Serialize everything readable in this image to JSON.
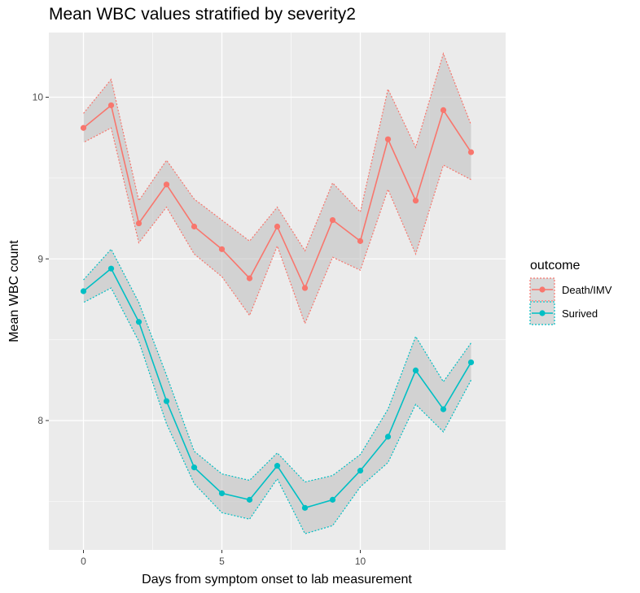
{
  "chart_data": {
    "type": "line",
    "title": "Mean WBC values stratified by severity2",
    "xlabel": "Days from symptom onset to lab measurement",
    "ylabel": "Mean WBC count",
    "xlim": [
      -1.25,
      15.25
    ],
    "ylim": [
      7.2,
      10.4
    ],
    "x_ticks": [
      0,
      5,
      10
    ],
    "y_ticks": [
      8,
      9,
      10
    ],
    "grid": true,
    "legend": {
      "title": "outcome",
      "position": "right"
    },
    "x": [
      0,
      1,
      2,
      3,
      4,
      5,
      6,
      7,
      8,
      9,
      10,
      11,
      12,
      13,
      14
    ],
    "series": [
      {
        "name": "Death/IMV",
        "color": "#F8766D",
        "values": [
          9.81,
          9.95,
          9.22,
          9.46,
          9.2,
          9.06,
          8.88,
          9.2,
          8.82,
          9.24,
          9.11,
          9.74,
          9.36,
          9.92,
          9.66
        ],
        "lower": [
          9.72,
          9.81,
          9.1,
          9.32,
          9.03,
          8.89,
          8.65,
          9.08,
          8.6,
          9.01,
          8.93,
          9.43,
          9.03,
          9.58,
          9.49
        ],
        "upper": [
          9.9,
          10.11,
          9.36,
          9.61,
          9.37,
          9.24,
          9.11,
          9.32,
          9.05,
          9.47,
          9.29,
          10.05,
          9.69,
          10.27,
          9.83
        ]
      },
      {
        "name": "Surived",
        "color": "#00BFC4",
        "values": [
          8.8,
          8.94,
          8.61,
          8.12,
          7.71,
          7.55,
          7.51,
          7.72,
          7.46,
          7.51,
          7.69,
          7.9,
          8.31,
          8.07,
          8.36
        ],
        "lower": [
          8.73,
          8.82,
          8.49,
          7.98,
          7.61,
          7.43,
          7.39,
          7.64,
          7.3,
          7.35,
          7.59,
          7.74,
          8.1,
          7.93,
          8.25
        ],
        "upper": [
          8.87,
          9.06,
          8.73,
          8.28,
          7.81,
          7.67,
          7.63,
          7.8,
          7.62,
          7.66,
          7.79,
          8.07,
          8.52,
          8.24,
          8.48
        ]
      }
    ]
  }
}
